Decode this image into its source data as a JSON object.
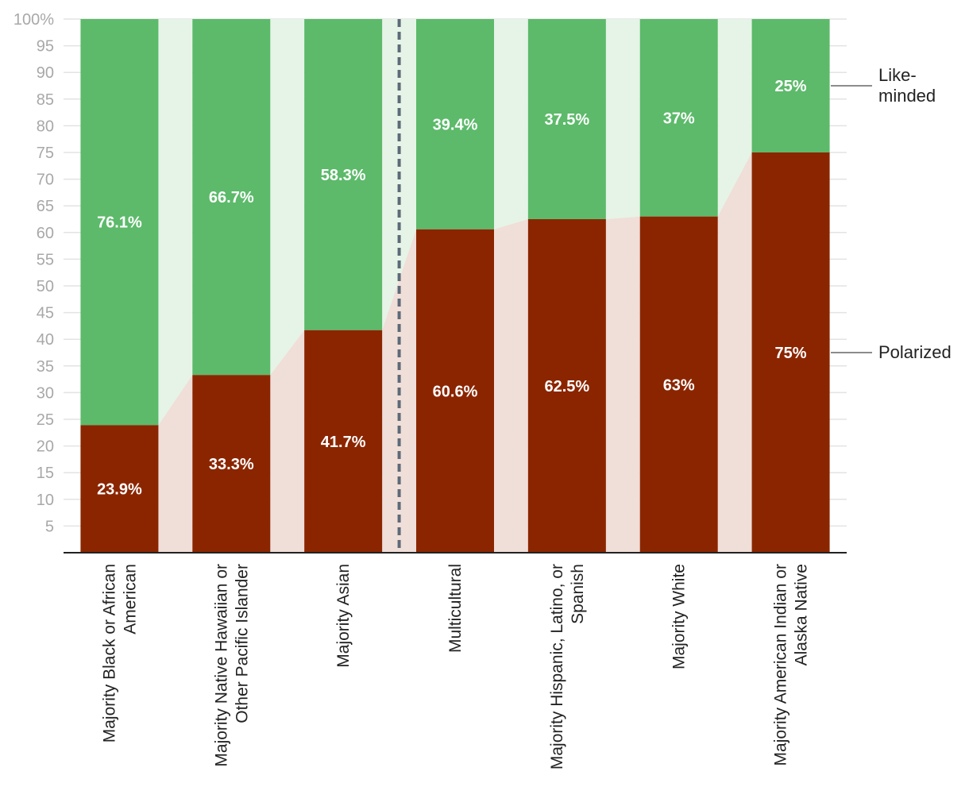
{
  "chart_data": {
    "type": "bar",
    "stacked": true,
    "percent_axis": true,
    "categories": [
      "Majority Black or African American",
      "Majority Native Hawaiian or Other Pacific Islander",
      "Majority Asian",
      "Multicultural",
      "Majority Hispanic, Latino, or Spanish",
      "Majority White",
      "Majority American Indian or Alaska Native"
    ],
    "series": [
      {
        "name": "Polarized",
        "values": [
          23.9,
          33.3,
          41.7,
          60.6,
          62.5,
          63,
          75
        ],
        "labels": [
          "23.9%",
          "33.3%",
          "41.7%",
          "60.6%",
          "62.5%",
          "63%",
          "75%"
        ],
        "color": "#8b2500",
        "fill_color": "#f0ded8"
      },
      {
        "name": "Like-minded",
        "values": [
          76.1,
          66.7,
          58.3,
          39.4,
          37.5,
          37,
          25
        ],
        "labels": [
          "76.1%",
          "66.7%",
          "58.3%",
          "39.4%",
          "37.5%",
          "37%",
          "25%"
        ],
        "color": "#5cba6a",
        "fill_color": "#e5f4e6"
      }
    ],
    "legend": [
      {
        "series": 1,
        "lines": [
          "Like-",
          "minded"
        ]
      },
      {
        "series": 0,
        "lines": [
          "Polarized"
        ]
      }
    ],
    "ylim": [
      0,
      100
    ],
    "yticks": [
      {
        "value": 5,
        "label": "5"
      },
      {
        "value": 10,
        "label": "10"
      },
      {
        "value": 15,
        "label": "15"
      },
      {
        "value": 20,
        "label": "20"
      },
      {
        "value": 25,
        "label": "25"
      },
      {
        "value": 30,
        "label": "30"
      },
      {
        "value": 35,
        "label": "35"
      },
      {
        "value": 40,
        "label": "40"
      },
      {
        "value": 45,
        "label": "45"
      },
      {
        "value": 50,
        "label": "50"
      },
      {
        "value": 55,
        "label": "55"
      },
      {
        "value": 60,
        "label": "60"
      },
      {
        "value": 65,
        "label": "65"
      },
      {
        "value": 70,
        "label": "70"
      },
      {
        "value": 75,
        "label": "75"
      },
      {
        "value": 80,
        "label": "80"
      },
      {
        "value": 85,
        "label": "85"
      },
      {
        "value": 90,
        "label": "90"
      },
      {
        "value": 95,
        "label": "95"
      },
      {
        "value": 100,
        "label": "100%"
      }
    ],
    "cat_label_lines": [
      [
        "Majority Black or African",
        "American"
      ],
      [
        "Majority Native Hawaiian or",
        "Other Pacific Islander"
      ],
      [
        "Majority Asian"
      ],
      [
        "Multicultural"
      ],
      [
        "Majority Hispanic, Latino, or",
        "Spanish"
      ],
      [
        "Majority White"
      ],
      [
        "Majority American Indian or",
        "Alaska Native"
      ]
    ],
    "divider_after_index": 2,
    "grid": true,
    "legend_position": "right"
  }
}
